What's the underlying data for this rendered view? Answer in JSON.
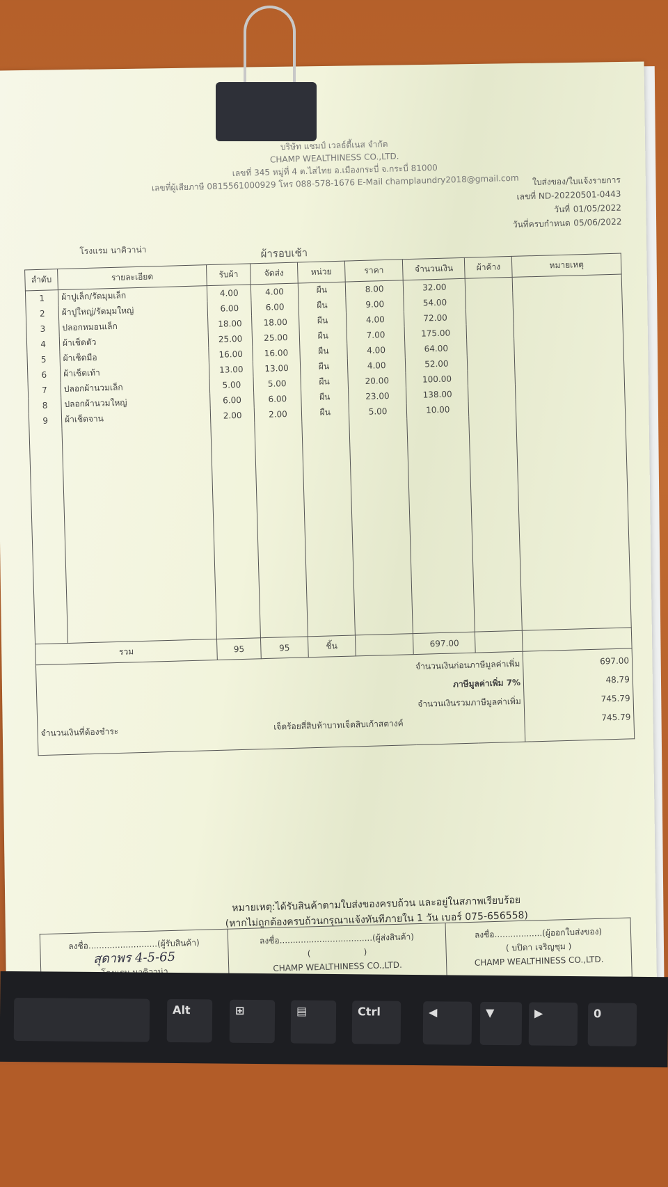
{
  "company": {
    "name_th": "บริษัท แชมป์ เวลธ์ตี้เนส จำกัด",
    "name_en": "CHAMP WEALTHINESS CO.,LTD.",
    "address": "เลขที่ 345 หมู่ที่ 4 ต.ไสไทย อ.เมืองกระบี่ จ.กระบี่ 81000",
    "contact": "เลขที่ผู้เสียภาษี 0815561000929 โทร 088-578-1676 E-Mail champlaundry2018@gmail.com"
  },
  "doc": {
    "type": "ใบส่งของ/ใบแจ้งรายการ",
    "no_label": "เลขที่",
    "no": "ND-20220501-0443",
    "date_label": "วันที่",
    "date": "01/05/2022",
    "due_label": "วันที่ครบกำหนด",
    "due": "05/06/2022",
    "customer": "โรงแรม นาคิวาน่า",
    "title": "ผ้ารอบเช้า"
  },
  "table": {
    "headers": [
      "ลำดับ",
      "รายละเอียด",
      "รับผ้า",
      "จัดส่ง",
      "หน่วย",
      "ราคา",
      "จำนวนเงิน",
      "ผ้าค้าง",
      "หมายเหตุ"
    ],
    "rows": [
      [
        "1",
        "ผ้าปูเล็ก/รัดมุมเล็ก",
        "4.00",
        "4.00",
        "ผืน",
        "8.00",
        "32.00"
      ],
      [
        "2",
        "ผ้าปูใหญ่/รัดมุมใหญ่",
        "6.00",
        "6.00",
        "ผืน",
        "9.00",
        "54.00"
      ],
      [
        "3",
        "ปลอกหมอนเล็ก",
        "18.00",
        "18.00",
        "ผืน",
        "4.00",
        "72.00"
      ],
      [
        "4",
        "ผ้าเช็ดตัว",
        "25.00",
        "25.00",
        "ผืน",
        "7.00",
        "175.00"
      ],
      [
        "5",
        "ผ้าเช็ดมือ",
        "16.00",
        "16.00",
        "ผืน",
        "4.00",
        "64.00"
      ],
      [
        "6",
        "ผ้าเช็ดเท้า",
        "13.00",
        "13.00",
        "ผืน",
        "4.00",
        "52.00"
      ],
      [
        "7",
        "ปลอกผ้านวมเล็ก",
        "5.00",
        "5.00",
        "ผืน",
        "20.00",
        "100.00"
      ],
      [
        "8",
        "ปลอกผ้านวมใหญ่",
        "6.00",
        "6.00",
        "ผืน",
        "23.00",
        "138.00"
      ],
      [
        "9",
        "ผ้าเช็ดจาน",
        "2.00",
        "2.00",
        "ผืน",
        "5.00",
        "10.00"
      ]
    ],
    "total": {
      "label": "รวม",
      "received": "95",
      "delivered": "95",
      "unit": "ชิ้น",
      "amount": "697.00"
    }
  },
  "summary": {
    "before_vat_label": "จำนวนเงินก่อนภาษีมูลค่าเพิ่ม",
    "before_vat": "697.00",
    "vat_label": "ภาษีมูลค่าเพิ่ม 7%",
    "vat": "48.79",
    "with_vat_label": "จำนวนเงินรวมภาษีมูลค่าเพิ่ม",
    "with_vat": "745.79",
    "payable_label": "จำนวนเงินที่ต้องชำระ",
    "payable_words": "เจ็ดร้อยสี่สิบห้าบาทเจ็ดสิบเก้าสตางค์",
    "payable": "745.79"
  },
  "notes": {
    "line1": "หมายเหตุ:ได้รับสินค้าตามใบส่งของครบถ้วน และอยู่ในสภาพเรียบร้อย",
    "line2": "(หากไม่ถูกต้องครบถ้วนกรุณาแจ้งทันทีภายใน 1 วัน เบอร์ 075-656558)"
  },
  "signatures": [
    {
      "line": "ลงชื่อ..........................(ผู้รับสินค้า)",
      "handwritten": "สุดาพร  4-5-65",
      "paren": "(                              )",
      "org": "โรงแรม นาคิวาน่า"
    },
    {
      "line": "ลงชื่อ...................................(ผู้ส่งสินค้า)",
      "paren": "(                    )",
      "org": "CHAMP WEALTHINESS CO.,LTD."
    },
    {
      "line": "ลงชื่อ..................(ผู้ออกใบส่งของ)",
      "paren": "( บปิดา เจริญชุม )",
      "org": "CHAMP WEALTHINESS CO.,LTD."
    }
  ],
  "keyboard": {
    "keys": [
      "Alt",
      "Ctrl",
      "0"
    ]
  }
}
